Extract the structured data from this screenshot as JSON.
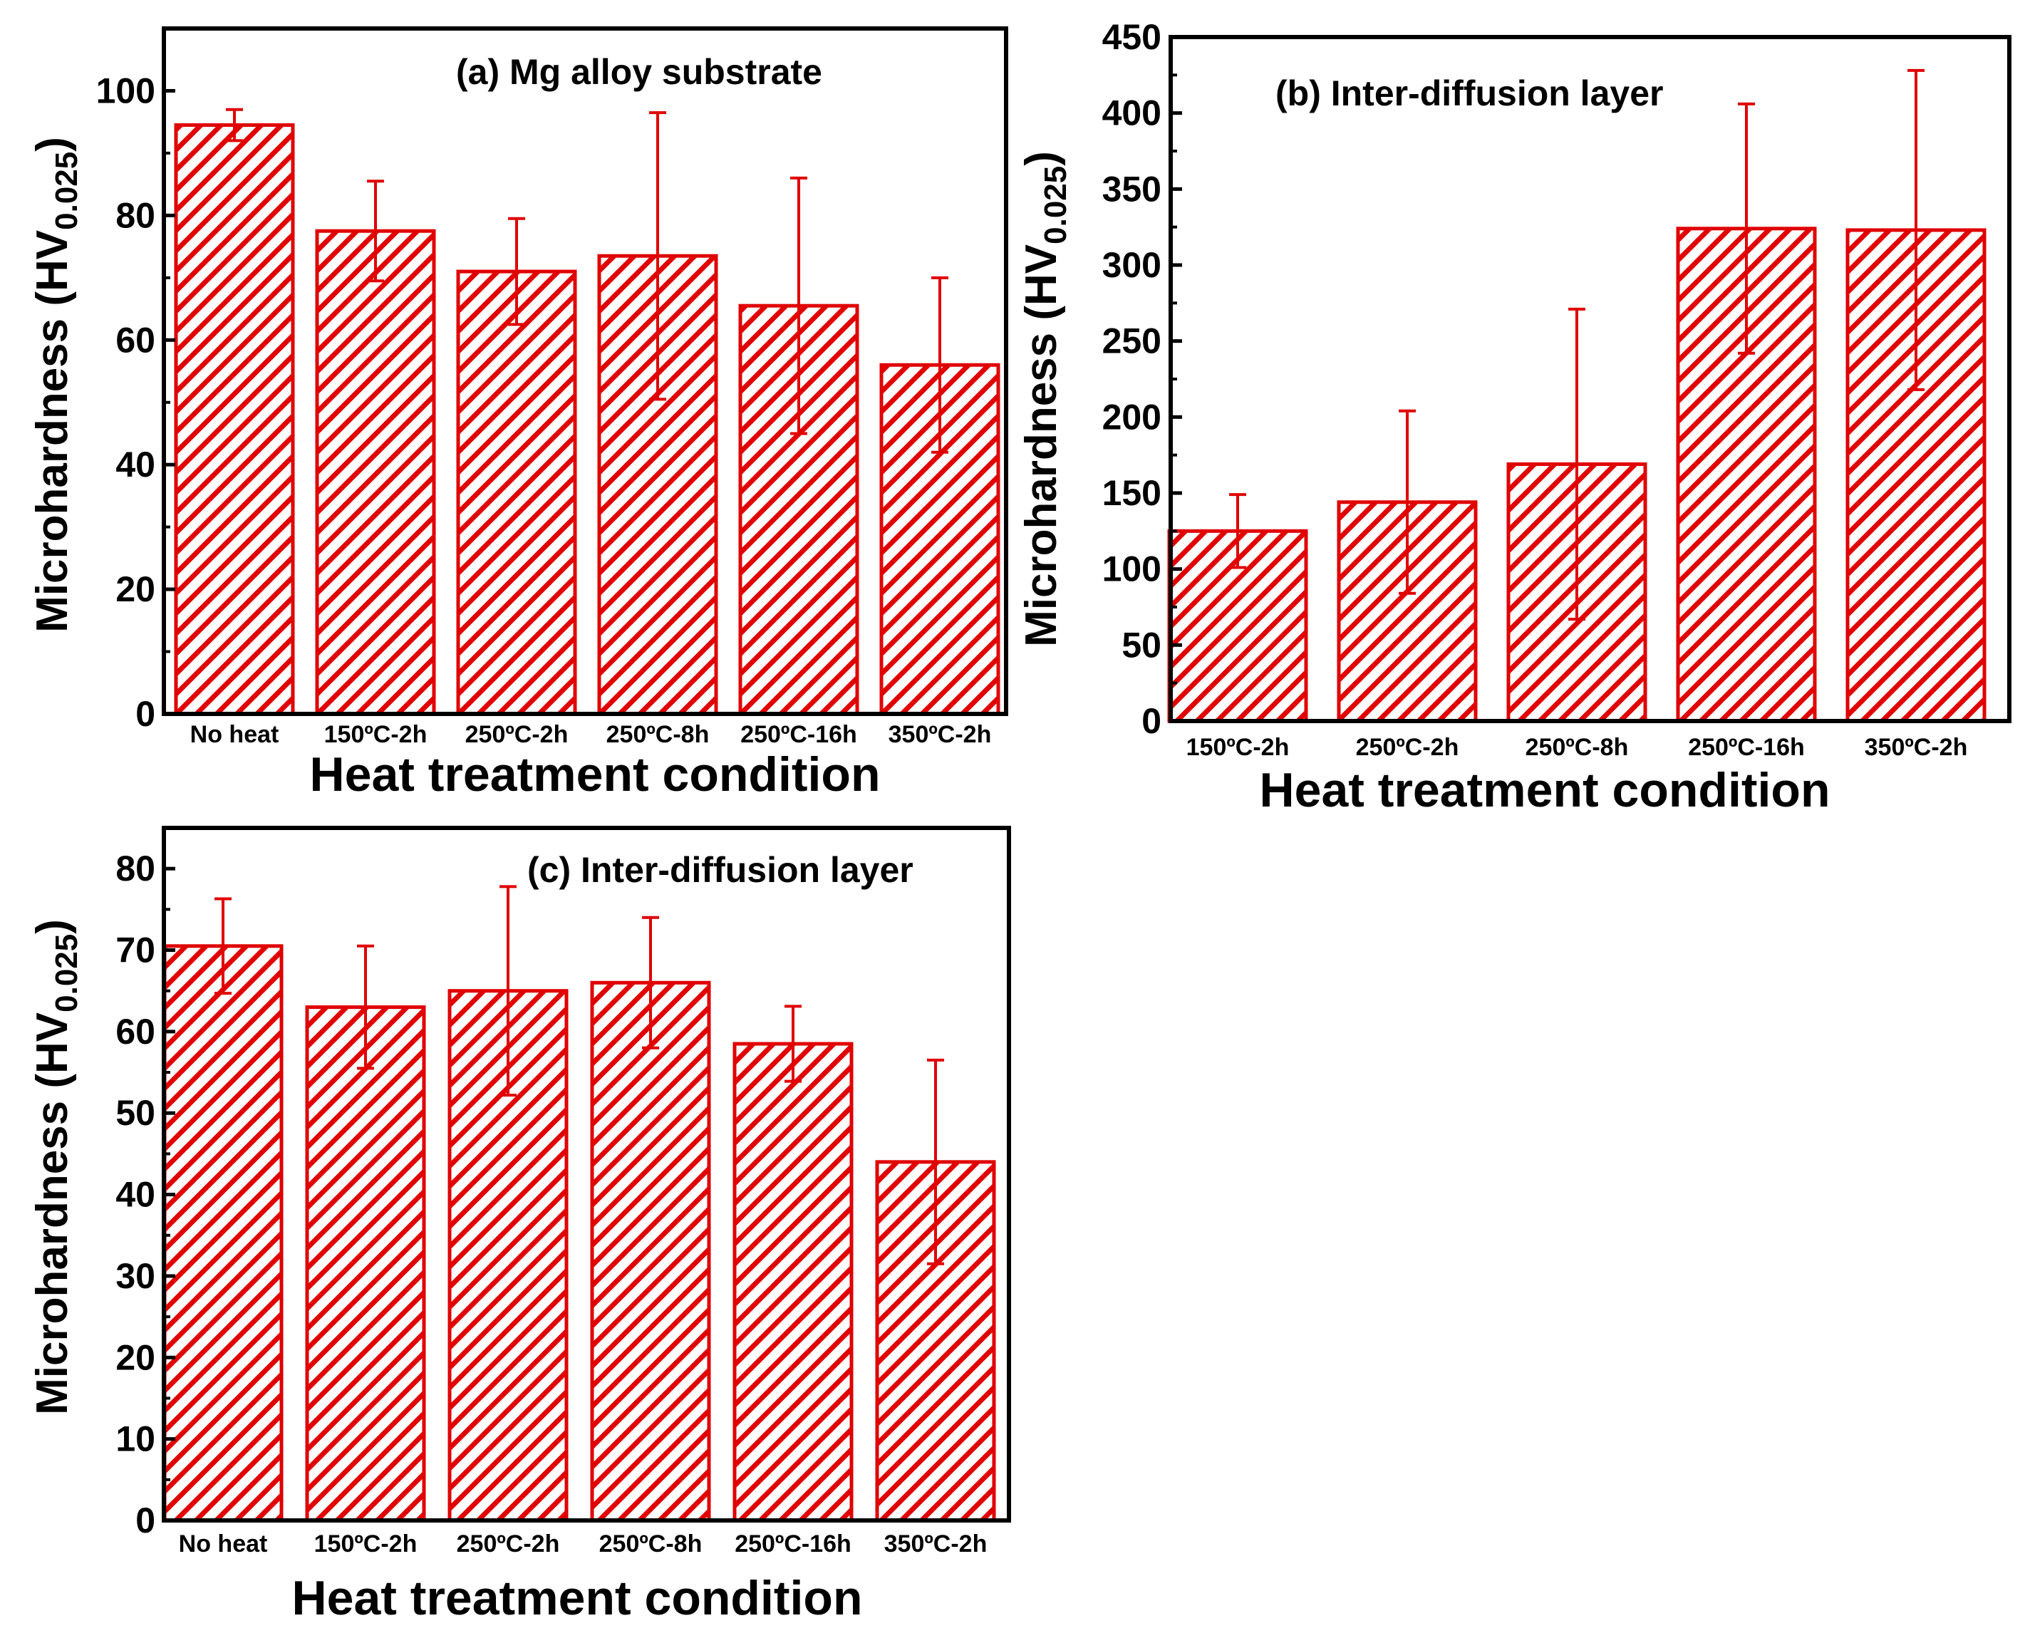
{
  "figure": {
    "background": "#ffffff",
    "bar_color": "#e00000"
  },
  "chart_data": [
    {
      "type": "bar",
      "id": "a",
      "title": "(a) Mg alloy substrate",
      "xlabel": "Heat treatment condition",
      "ylabel": {
        "main": "Microhardness (HV",
        "sub": "0.025",
        "close": ")"
      },
      "ylim": [
        0,
        110
      ],
      "yticks": [
        0,
        20,
        40,
        60,
        80,
        100
      ],
      "categories": [
        "No heat",
        "150ºC-2h",
        "250ºC-2h",
        "250ºC-8h",
        "250ºC-16h",
        "350ºC-2h"
      ],
      "values": [
        94.5,
        77.5,
        71,
        73.5,
        65.5,
        56
      ],
      "errors": [
        2.5,
        8,
        8.5,
        23,
        20.5,
        14
      ],
      "legend": "none"
    },
    {
      "type": "bar",
      "id": "b",
      "title": "(b) Inter-diffusion layer",
      "xlabel": "Heat treatment condition",
      "ylabel": {
        "main": "Microhardness (HV",
        "sub": "0.025",
        "close": ")"
      },
      "ylim": [
        0,
        450
      ],
      "yticks": [
        0,
        50,
        100,
        150,
        200,
        250,
        300,
        350,
        400,
        450
      ],
      "categories": [
        "150ºC-2h",
        "250ºC-2h",
        "250ºC-8h",
        "250ºC-16h",
        "350ºC-2h"
      ],
      "values": [
        125,
        144,
        169,
        324,
        323
      ],
      "errors": [
        24,
        60,
        102,
        82,
        105
      ],
      "legend": "none"
    },
    {
      "type": "bar",
      "id": "c",
      "title": "(c) Inter-diffusion layer",
      "xlabel": "Heat treatment condition",
      "ylabel": {
        "main": "Microhardness (HV",
        "sub": "0.025",
        "close": ")"
      },
      "ylim": [
        0,
        85
      ],
      "yticks": [
        0,
        10,
        20,
        30,
        40,
        50,
        60,
        70,
        80
      ],
      "categories": [
        "No heat",
        "150ºC-2h",
        "250ºC-2h",
        "250ºC-8h",
        "250ºC-16h",
        "350ºC-2h"
      ],
      "values": [
        70.5,
        63,
        65,
        66,
        58.5,
        44
      ],
      "errors": [
        5.8,
        7.5,
        12.8,
        8,
        4.6,
        12.5
      ],
      "legend": "none"
    }
  ]
}
